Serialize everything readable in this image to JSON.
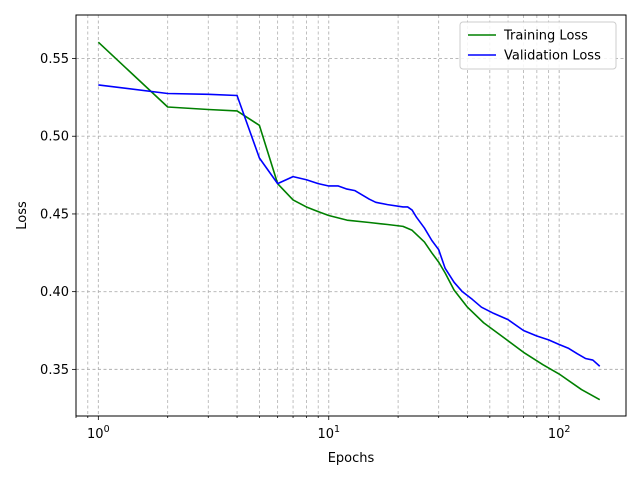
{
  "chart_data": {
    "type": "line",
    "title": "",
    "xlabel": "Epochs",
    "ylabel": "Loss",
    "xscale": "log",
    "xlim": [
      0.8,
      195
    ],
    "ylim": [
      0.32,
      0.578
    ],
    "grid": "both",
    "legend_position": "top-right",
    "x_major_ticks": [
      1,
      10,
      100
    ],
    "x_tick_labels": [
      {
        "base": "10",
        "exp": "0"
      },
      {
        "base": "10",
        "exp": "1"
      },
      {
        "base": "10",
        "exp": "2"
      }
    ],
    "y_ticks": [
      0.35,
      0.4,
      0.45,
      0.5,
      0.55
    ],
    "y_tick_labels": [
      "0.35",
      "0.40",
      "0.45",
      "0.50",
      "0.55"
    ],
    "series": [
      {
        "name": "Training Loss",
        "color": "#008000",
        "points": [
          [
            1,
            0.5605
          ],
          [
            2,
            0.5188
          ],
          [
            3,
            0.5172
          ],
          [
            4,
            0.5163
          ],
          [
            5,
            0.507
          ],
          [
            6,
            0.4695
          ],
          [
            7,
            0.459
          ],
          [
            8,
            0.4545
          ],
          [
            9,
            0.4515
          ],
          [
            10,
            0.449
          ],
          [
            12,
            0.446
          ],
          [
            15,
            0.4445
          ],
          [
            18,
            0.4432
          ],
          [
            21,
            0.442
          ],
          [
            23,
            0.4395
          ],
          [
            26,
            0.432
          ],
          [
            28,
            0.425
          ],
          [
            30,
            0.419
          ],
          [
            32,
            0.412
          ],
          [
            35,
            0.401
          ],
          [
            40,
            0.39
          ],
          [
            47,
            0.38
          ],
          [
            58,
            0.37
          ],
          [
            70,
            0.361
          ],
          [
            85,
            0.353
          ],
          [
            100,
            0.347
          ],
          [
            125,
            0.337
          ],
          [
            150,
            0.3305
          ]
        ]
      },
      {
        "name": "Validation Loss",
        "color": "#0000ff",
        "points": [
          [
            1,
            0.533
          ],
          [
            2,
            0.5275
          ],
          [
            3,
            0.527
          ],
          [
            4,
            0.5262
          ],
          [
            5,
            0.486
          ],
          [
            6,
            0.4695
          ],
          [
            7,
            0.474
          ],
          [
            8,
            0.472
          ],
          [
            9,
            0.4695
          ],
          [
            10,
            0.468
          ],
          [
            11,
            0.468
          ],
          [
            12,
            0.466
          ],
          [
            13,
            0.465
          ],
          [
            15,
            0.4595
          ],
          [
            16,
            0.4575
          ],
          [
            18,
            0.456
          ],
          [
            21,
            0.4545
          ],
          [
            22,
            0.4545
          ],
          [
            23,
            0.4525
          ],
          [
            24,
            0.448
          ],
          [
            26,
            0.441
          ],
          [
            28,
            0.433
          ],
          [
            30,
            0.427
          ],
          [
            32,
            0.415
          ],
          [
            35,
            0.406
          ],
          [
            38,
            0.4
          ],
          [
            42,
            0.395
          ],
          [
            46,
            0.39
          ],
          [
            52,
            0.386
          ],
          [
            60,
            0.382
          ],
          [
            70,
            0.375
          ],
          [
            80,
            0.3715
          ],
          [
            90,
            0.369
          ],
          [
            100,
            0.366
          ],
          [
            110,
            0.3635
          ],
          [
            120,
            0.36
          ],
          [
            130,
            0.357
          ],
          [
            140,
            0.356
          ],
          [
            150,
            0.352
          ]
        ]
      }
    ]
  }
}
